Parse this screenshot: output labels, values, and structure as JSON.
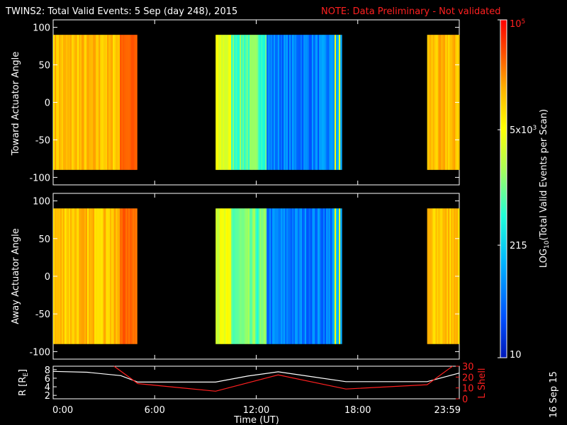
{
  "chart_data": [
    {
      "type": "heatmap",
      "title": "TWINS2: Total Valid Events:  5 Sep (day 248), 2015",
      "note": "NOTE: Data Preliminary - Not validated",
      "ylabel": "Toward Actuator Angle",
      "ylim": [
        -110,
        110
      ],
      "yticks": [
        "100",
        "50",
        "0",
        "-50",
        "-100"
      ],
      "ytick_values": [
        100,
        50,
        0,
        -50,
        -100
      ],
      "data_range_y": [
        -90,
        90
      ],
      "xlim": [
        0,
        24
      ],
      "segments": [
        {
          "start_hour": 0.0,
          "end_hour": 4.95,
          "level": "high"
        },
        {
          "start_hour": 9.6,
          "end_hour": 17.05,
          "level": "mixed"
        },
        {
          "start_hour": 22.1,
          "end_hour": 24.0,
          "level": "high"
        }
      ]
    },
    {
      "type": "heatmap",
      "ylabel": "Away Actuator Angle",
      "ylim": [
        -110,
        110
      ],
      "yticks": [
        "100",
        "50",
        "0",
        "-50",
        "-100"
      ],
      "ytick_values": [
        100,
        50,
        0,
        -50,
        -100
      ],
      "data_range_y": [
        -90,
        90
      ],
      "xlim": [
        0,
        24
      ],
      "segments": [
        {
          "start_hour": 0.0,
          "end_hour": 4.95,
          "level": "high"
        },
        {
          "start_hour": 9.6,
          "end_hour": 17.05,
          "level": "mixed"
        },
        {
          "start_hour": 22.1,
          "end_hour": 24.0,
          "level": "high"
        }
      ]
    },
    {
      "type": "line",
      "ylabel_left": "R [R",
      "ylabel_left_sub": "E",
      "ylabel_left_end": "]",
      "ylabel_right": "L Shell",
      "left_yticks": [
        "8",
        "6",
        "4",
        "2"
      ],
      "left_ytick_values": [
        8,
        6,
        4,
        2
      ],
      "left_ylim": [
        1.2,
        8.8
      ],
      "right_yticks": [
        "30",
        "20",
        "10",
        "0"
      ],
      "right_ytick_values": [
        30,
        20,
        10,
        0
      ],
      "right_ylim": [
        0,
        30
      ],
      "xlim": [
        0,
        24
      ],
      "series": [
        {
          "name": "R",
          "color": "#ffffff",
          "axis": "left",
          "x": [
            0,
            2,
            4,
            5,
            9.6,
            11.5,
            13.3,
            15.2,
            17.3,
            22.1,
            24
          ],
          "y": [
            7.6,
            7.4,
            6.6,
            5.1,
            5.1,
            6.5,
            7.5,
            6.4,
            5.2,
            5.2,
            7.2
          ]
        },
        {
          "name": "L Shell",
          "color": "#ff2020",
          "axis": "right",
          "x": [
            3.6,
            5.0,
            9.6,
            13.3,
            17.3,
            22.1,
            23.6
          ],
          "y": [
            30,
            14,
            7,
            22,
            9,
            13,
            30
          ]
        }
      ],
      "xlabel": "Time (UT)",
      "xticks": [
        "0:00",
        "6:00",
        "12:00",
        "18:00",
        "23:59"
      ],
      "xtick_values": [
        0,
        6,
        12,
        18,
        24
      ]
    }
  ],
  "colorbar": {
    "label_main": "LOG",
    "label_sub": "10",
    "label_rest": "(Total Valid Events per Scan)",
    "ticks": [
      {
        "base": "10",
        "exp": "5",
        "value": 100000,
        "color": "#ff2020"
      },
      {
        "base": "5x10",
        "exp": "3",
        "value": 5000,
        "color": "#ffffff"
      },
      {
        "base": "215",
        "exp": "",
        "value": 215,
        "color": "#ffffff"
      },
      {
        "base": "10",
        "exp": "",
        "value": 10,
        "color": "#ffffff"
      }
    ],
    "log_min": 1,
    "log_max": 5,
    "colors": [
      "#0018b8",
      "#0050ff",
      "#00b4ff",
      "#20ffd8",
      "#aaff55",
      "#ffff00",
      "#ffb000",
      "#ff5000",
      "#ff0000"
    ]
  },
  "footer": {
    "date_stamp": "16 Sep 15"
  }
}
